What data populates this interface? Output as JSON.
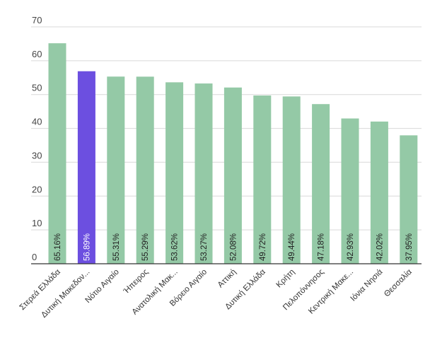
{
  "chart_data": {
    "type": "bar",
    "title": "",
    "xlabel": "",
    "ylabel": "",
    "ylim": [
      0,
      70
    ],
    "yticks": [
      0,
      10,
      20,
      30,
      40,
      50,
      60,
      70
    ],
    "grid": true,
    "categories": [
      "Στερεά Ελλάδα",
      "Δυτική Μακεδον...",
      "Νότιο Αιγαίο",
      "Ήπειρος",
      "Ανατολική Μακ...",
      "Βόρειο Αιγαίο",
      "Αττική",
      "Δυτική Ελλάδα",
      "Κρήτη",
      "Πελοπόννησος",
      "Κεντρική Μακε...",
      "Ιόνια Νησιά",
      "Θεσσαλία"
    ],
    "values": [
      65.16,
      56.89,
      55.31,
      55.29,
      53.62,
      53.27,
      52.08,
      49.72,
      49.44,
      47.18,
      42.93,
      42.02,
      37.95
    ],
    "labels": [
      "65.16%",
      "56.89%",
      "55.31%",
      "55.29%",
      "53.62%",
      "53.27%",
      "52.08%",
      "49.72%",
      "49.44%",
      "47.18%",
      "42.93%",
      "42.02%",
      "37.95%"
    ],
    "highlight_index": 1,
    "colors": {
      "bar": "#94c9a6",
      "highlight": "#6c4fe0",
      "grid": "#d9d9d9",
      "axis": "#333333",
      "label_on_bar": "#222222",
      "label_on_highlight": "#ffffff"
    }
  }
}
